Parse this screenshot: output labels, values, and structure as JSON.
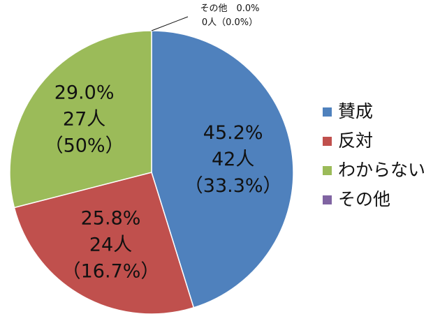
{
  "chart_data": {
    "type": "pie",
    "legend_position": "right",
    "slices": [
      {
        "name": "賛成",
        "value": 45.2,
        "color": "#4F81BD",
        "label_lines": [
          "45.2%",
          "42人",
          "（33.3%）"
        ]
      },
      {
        "name": "反対",
        "value": 25.8,
        "color": "#C0504D",
        "label_lines": [
          "25.8%",
          "24人",
          "（16.7%）"
        ]
      },
      {
        "name": "わからない",
        "value": 29.0,
        "color": "#9BBB59",
        "label_lines": [
          "29.0%",
          "27人",
          "（50%）"
        ]
      },
      {
        "name": "その他",
        "value": 0.0,
        "color": "#8064A2",
        "label_lines": [
          "その他　0.0%",
          "0人（0.0%）"
        ]
      }
    ]
  }
}
